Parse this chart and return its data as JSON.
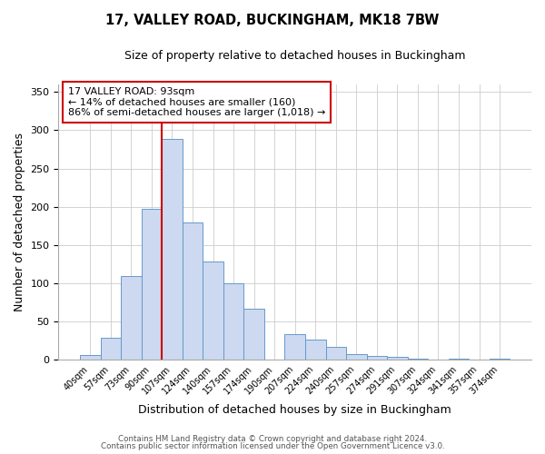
{
  "title": "17, VALLEY ROAD, BUCKINGHAM, MK18 7BW",
  "subtitle": "Size of property relative to detached houses in Buckingham",
  "xlabel": "Distribution of detached houses by size in Buckingham",
  "ylabel": "Number of detached properties",
  "bin_labels": [
    "40sqm",
    "57sqm",
    "73sqm",
    "90sqm",
    "107sqm",
    "124sqm",
    "140sqm",
    "157sqm",
    "174sqm",
    "190sqm",
    "207sqm",
    "224sqm",
    "240sqm",
    "257sqm",
    "274sqm",
    "291sqm",
    "307sqm",
    "324sqm",
    "341sqm",
    "357sqm",
    "374sqm"
  ],
  "bar_heights": [
    6,
    29,
    110,
    197,
    288,
    180,
    128,
    100,
    67,
    0,
    34,
    26,
    17,
    8,
    5,
    4,
    2,
    0,
    1,
    0,
    2
  ],
  "bar_color": "#ccd9f0",
  "bar_edge_color": "#6699cc",
  "vline_x_index": 4,
  "vline_color": "#cc0000",
  "annotation_line1": "17 VALLEY ROAD: 93sqm",
  "annotation_line2": "← 14% of detached houses are smaller (160)",
  "annotation_line3": "86% of semi-detached houses are larger (1,018) →",
  "annotation_box_color": "#ffffff",
  "annotation_box_edge": "#cc0000",
  "ylim": [
    0,
    360
  ],
  "yticks": [
    0,
    50,
    100,
    150,
    200,
    250,
    300,
    350
  ],
  "footer1": "Contains HM Land Registry data © Crown copyright and database right 2024.",
  "footer2": "Contains public sector information licensed under the Open Government Licence v3.0.",
  "bg_color": "#ffffff",
  "grid_color": "#cccccc",
  "title_fontsize": 10.5,
  "subtitle_fontsize": 9,
  "ylabel_fontsize": 9,
  "xlabel_fontsize": 9
}
